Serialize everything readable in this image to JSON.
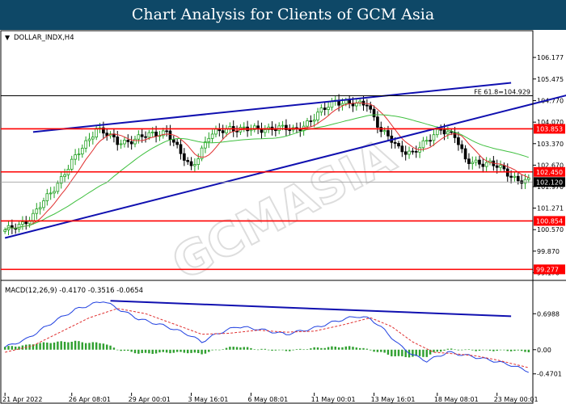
{
  "banner": {
    "title": "Chart Analysis for Clients of GCM Asia",
    "background": "#0e4867"
  },
  "chart_data": [
    {
      "type": "candlestick",
      "symbol_label": "DOLLAR_INDX,H4",
      "ylim": [
        99.05,
        106.6
      ],
      "y_ticks": [
        "106.177",
        "105.475",
        "104.770",
        "104.070",
        "103.370",
        "102.670",
        "101.970",
        "101.271",
        "100.570",
        "99.870",
        "99.170"
      ],
      "x_ticks": [
        "21 Apr 2022",
        "26 Apr 08:01",
        "29 Apr 00:01",
        "3 May 16:01",
        "6 May 08:01",
        "11 May 00:01",
        "13 May 16:01",
        "18 May 08:01",
        "23 May 00:01"
      ],
      "x_tick_index": [
        0,
        19,
        36,
        53,
        70,
        88,
        105,
        123,
        140
      ],
      "candle_count": 150,
      "close_anchors": [
        [
          0,
          100.5
        ],
        [
          8,
          101.0
        ],
        [
          20,
          102.9
        ],
        [
          26,
          103.9
        ],
        [
          32,
          103.4
        ],
        [
          40,
          103.6
        ],
        [
          46,
          103.8
        ],
        [
          50,
          103.0
        ],
        [
          53,
          102.6
        ],
        [
          58,
          103.6
        ],
        [
          64,
          103.9
        ],
        [
          70,
          103.8
        ],
        [
          76,
          103.9
        ],
        [
          82,
          103.8
        ],
        [
          88,
          104.2
        ],
        [
          94,
          104.8
        ],
        [
          100,
          104.6
        ],
        [
          103,
          104.7
        ],
        [
          107,
          103.8
        ],
        [
          112,
          103.2
        ],
        [
          116,
          103.1
        ],
        [
          120,
          103.4
        ],
        [
          124,
          103.9
        ],
        [
          128,
          103.6
        ],
        [
          131,
          102.8
        ],
        [
          134,
          102.8
        ],
        [
          138,
          102.7
        ],
        [
          142,
          102.5
        ],
        [
          146,
          102.2
        ],
        [
          149,
          102.12
        ]
      ],
      "moving_averages": [
        {
          "period": "fast",
          "color": "#e03030"
        },
        {
          "period": "slow",
          "color": "#40c040"
        }
      ],
      "horizontal_levels": [
        {
          "value": 104.929,
          "label": "FE 61.8=104.929",
          "color": "#000000",
          "style": "text"
        },
        {
          "value": 103.853,
          "label": "103.853",
          "color": "#ff0000",
          "style": "box"
        },
        {
          "value": 102.45,
          "label": "102.450",
          "color": "#ff0000",
          "style": "box"
        },
        {
          "value": 102.12,
          "label": "102.120",
          "color": "#000000",
          "style": "current"
        },
        {
          "value": 100.854,
          "label": "100.854",
          "color": "#ff0000",
          "style": "box"
        },
        {
          "value": 99.277,
          "label": "99.277",
          "color": "#ff0000",
          "style": "box"
        }
      ],
      "trendlines": [
        {
          "from": [
            8,
            103.75
          ],
          "to": [
            144,
            105.35
          ],
          "color": "#1010b0"
        },
        {
          "from": [
            0,
            100.3
          ],
          "to": [
            160,
            104.95
          ],
          "color": "#1010b0"
        }
      ],
      "colors": {
        "up": "#20a020",
        "down": "#000000"
      }
    },
    {
      "type": "macd",
      "label": "MACD(12,26,9) -0.4170 -0.3516 -0.0654",
      "ylim": [
        -0.82,
        1.08
      ],
      "y_ticks": [
        "0.6988",
        "0.00",
        "-0.4701"
      ],
      "y_tick_values": [
        0.6988,
        0.0,
        -0.4701
      ],
      "macd_anchors": [
        [
          0,
          0.05
        ],
        [
          6,
          0.2
        ],
        [
          14,
          0.55
        ],
        [
          20,
          0.78
        ],
        [
          28,
          0.95
        ],
        [
          32,
          0.8
        ],
        [
          38,
          0.6
        ],
        [
          46,
          0.45
        ],
        [
          52,
          0.3
        ],
        [
          56,
          0.15
        ],
        [
          60,
          0.3
        ],
        [
          66,
          0.45
        ],
        [
          72,
          0.4
        ],
        [
          80,
          0.3
        ],
        [
          88,
          0.42
        ],
        [
          94,
          0.55
        ],
        [
          100,
          0.65
        ],
        [
          104,
          0.6
        ],
        [
          108,
          0.38
        ],
        [
          112,
          0.1
        ],
        [
          116,
          -0.1
        ],
        [
          120,
          -0.22
        ],
        [
          126,
          -0.05
        ],
        [
          132,
          -0.12
        ],
        [
          138,
          -0.2
        ],
        [
          144,
          -0.3
        ],
        [
          149,
          -0.42
        ]
      ],
      "signal_anchors": [
        [
          0,
          -0.05
        ],
        [
          8,
          0.08
        ],
        [
          16,
          0.35
        ],
        [
          24,
          0.62
        ],
        [
          32,
          0.8
        ],
        [
          40,
          0.7
        ],
        [
          48,
          0.5
        ],
        [
          56,
          0.3
        ],
        [
          64,
          0.32
        ],
        [
          72,
          0.38
        ],
        [
          80,
          0.34
        ],
        [
          88,
          0.36
        ],
        [
          96,
          0.48
        ],
        [
          104,
          0.62
        ],
        [
          110,
          0.45
        ],
        [
          116,
          0.15
        ],
        [
          122,
          -0.05
        ],
        [
          128,
          -0.08
        ],
        [
          134,
          -0.12
        ],
        [
          140,
          -0.2
        ],
        [
          149,
          -0.35
        ]
      ],
      "trendline": {
        "from": [
          30,
          0.95
        ],
        "to": [
          144,
          0.65
        ],
        "color": "#1010b0"
      },
      "colors": {
        "macd": "#2040e0",
        "signal": "#e03030",
        "histogram": "#30a030"
      }
    }
  ]
}
